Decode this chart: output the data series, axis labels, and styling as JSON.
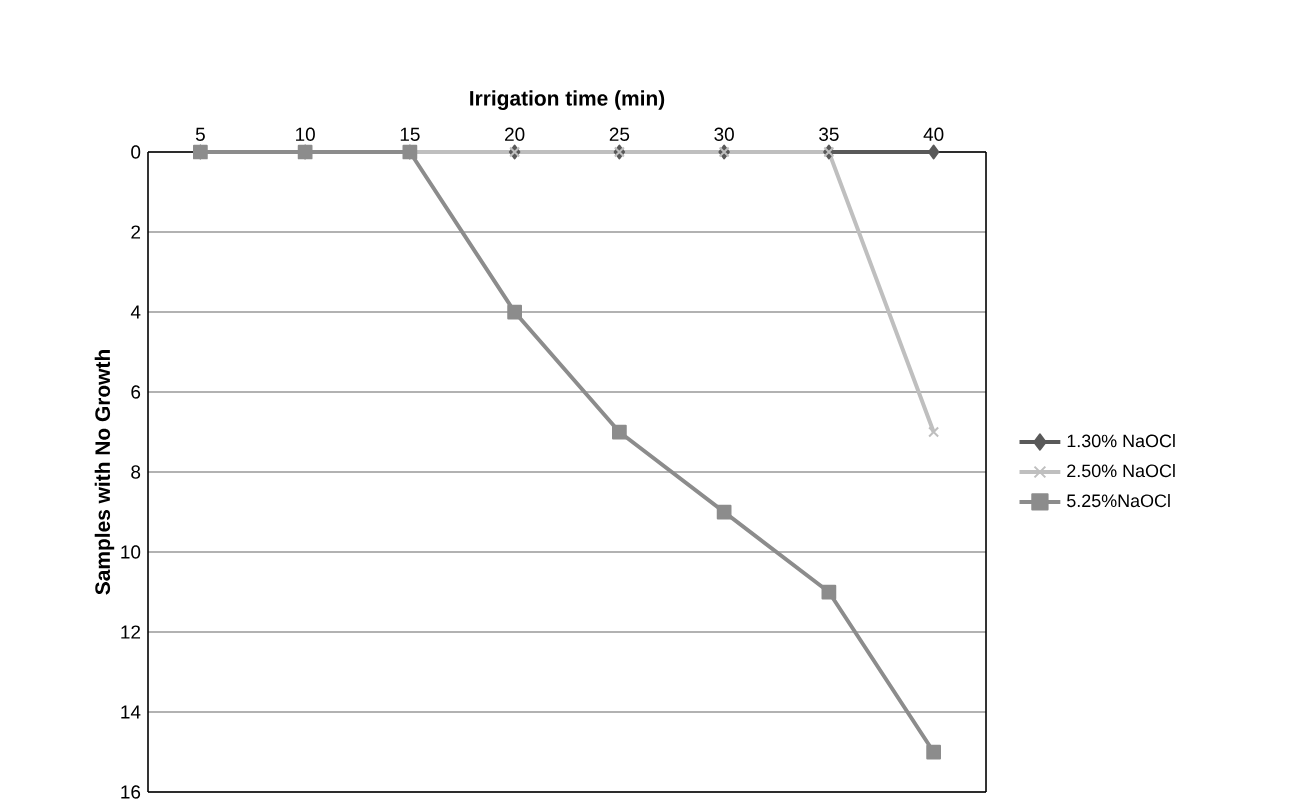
{
  "chart_data": {
    "type": "line",
    "xlabel": "Irrigation time (min)",
    "ylabel": "Samples with No Growth",
    "categories": [
      "5",
      "10",
      "15",
      "20",
      "25",
      "30",
      "35",
      "40"
    ],
    "series": [
      {
        "name": "1.30% NaOCl",
        "color": "#595959",
        "marker": "diamond",
        "values": [
          0,
          0,
          0,
          0,
          0,
          0,
          0,
          0
        ]
      },
      {
        "name": "2.50% NaOCl",
        "color": "#bfbfbf",
        "marker": "cross",
        "values": [
          0,
          0,
          0,
          0,
          0,
          0,
          0,
          7
        ]
      },
      {
        "name": "5.25%NaOCl",
        "color": "#8c8c8c",
        "marker": "square",
        "values": [
          0,
          0,
          0,
          4,
          7,
          9,
          11,
          15
        ]
      }
    ],
    "ylim": [
      16,
      0
    ],
    "yticks": [
      0,
      2,
      4,
      6,
      8,
      10,
      12,
      14,
      16
    ],
    "grid": "y",
    "legend": "right"
  }
}
